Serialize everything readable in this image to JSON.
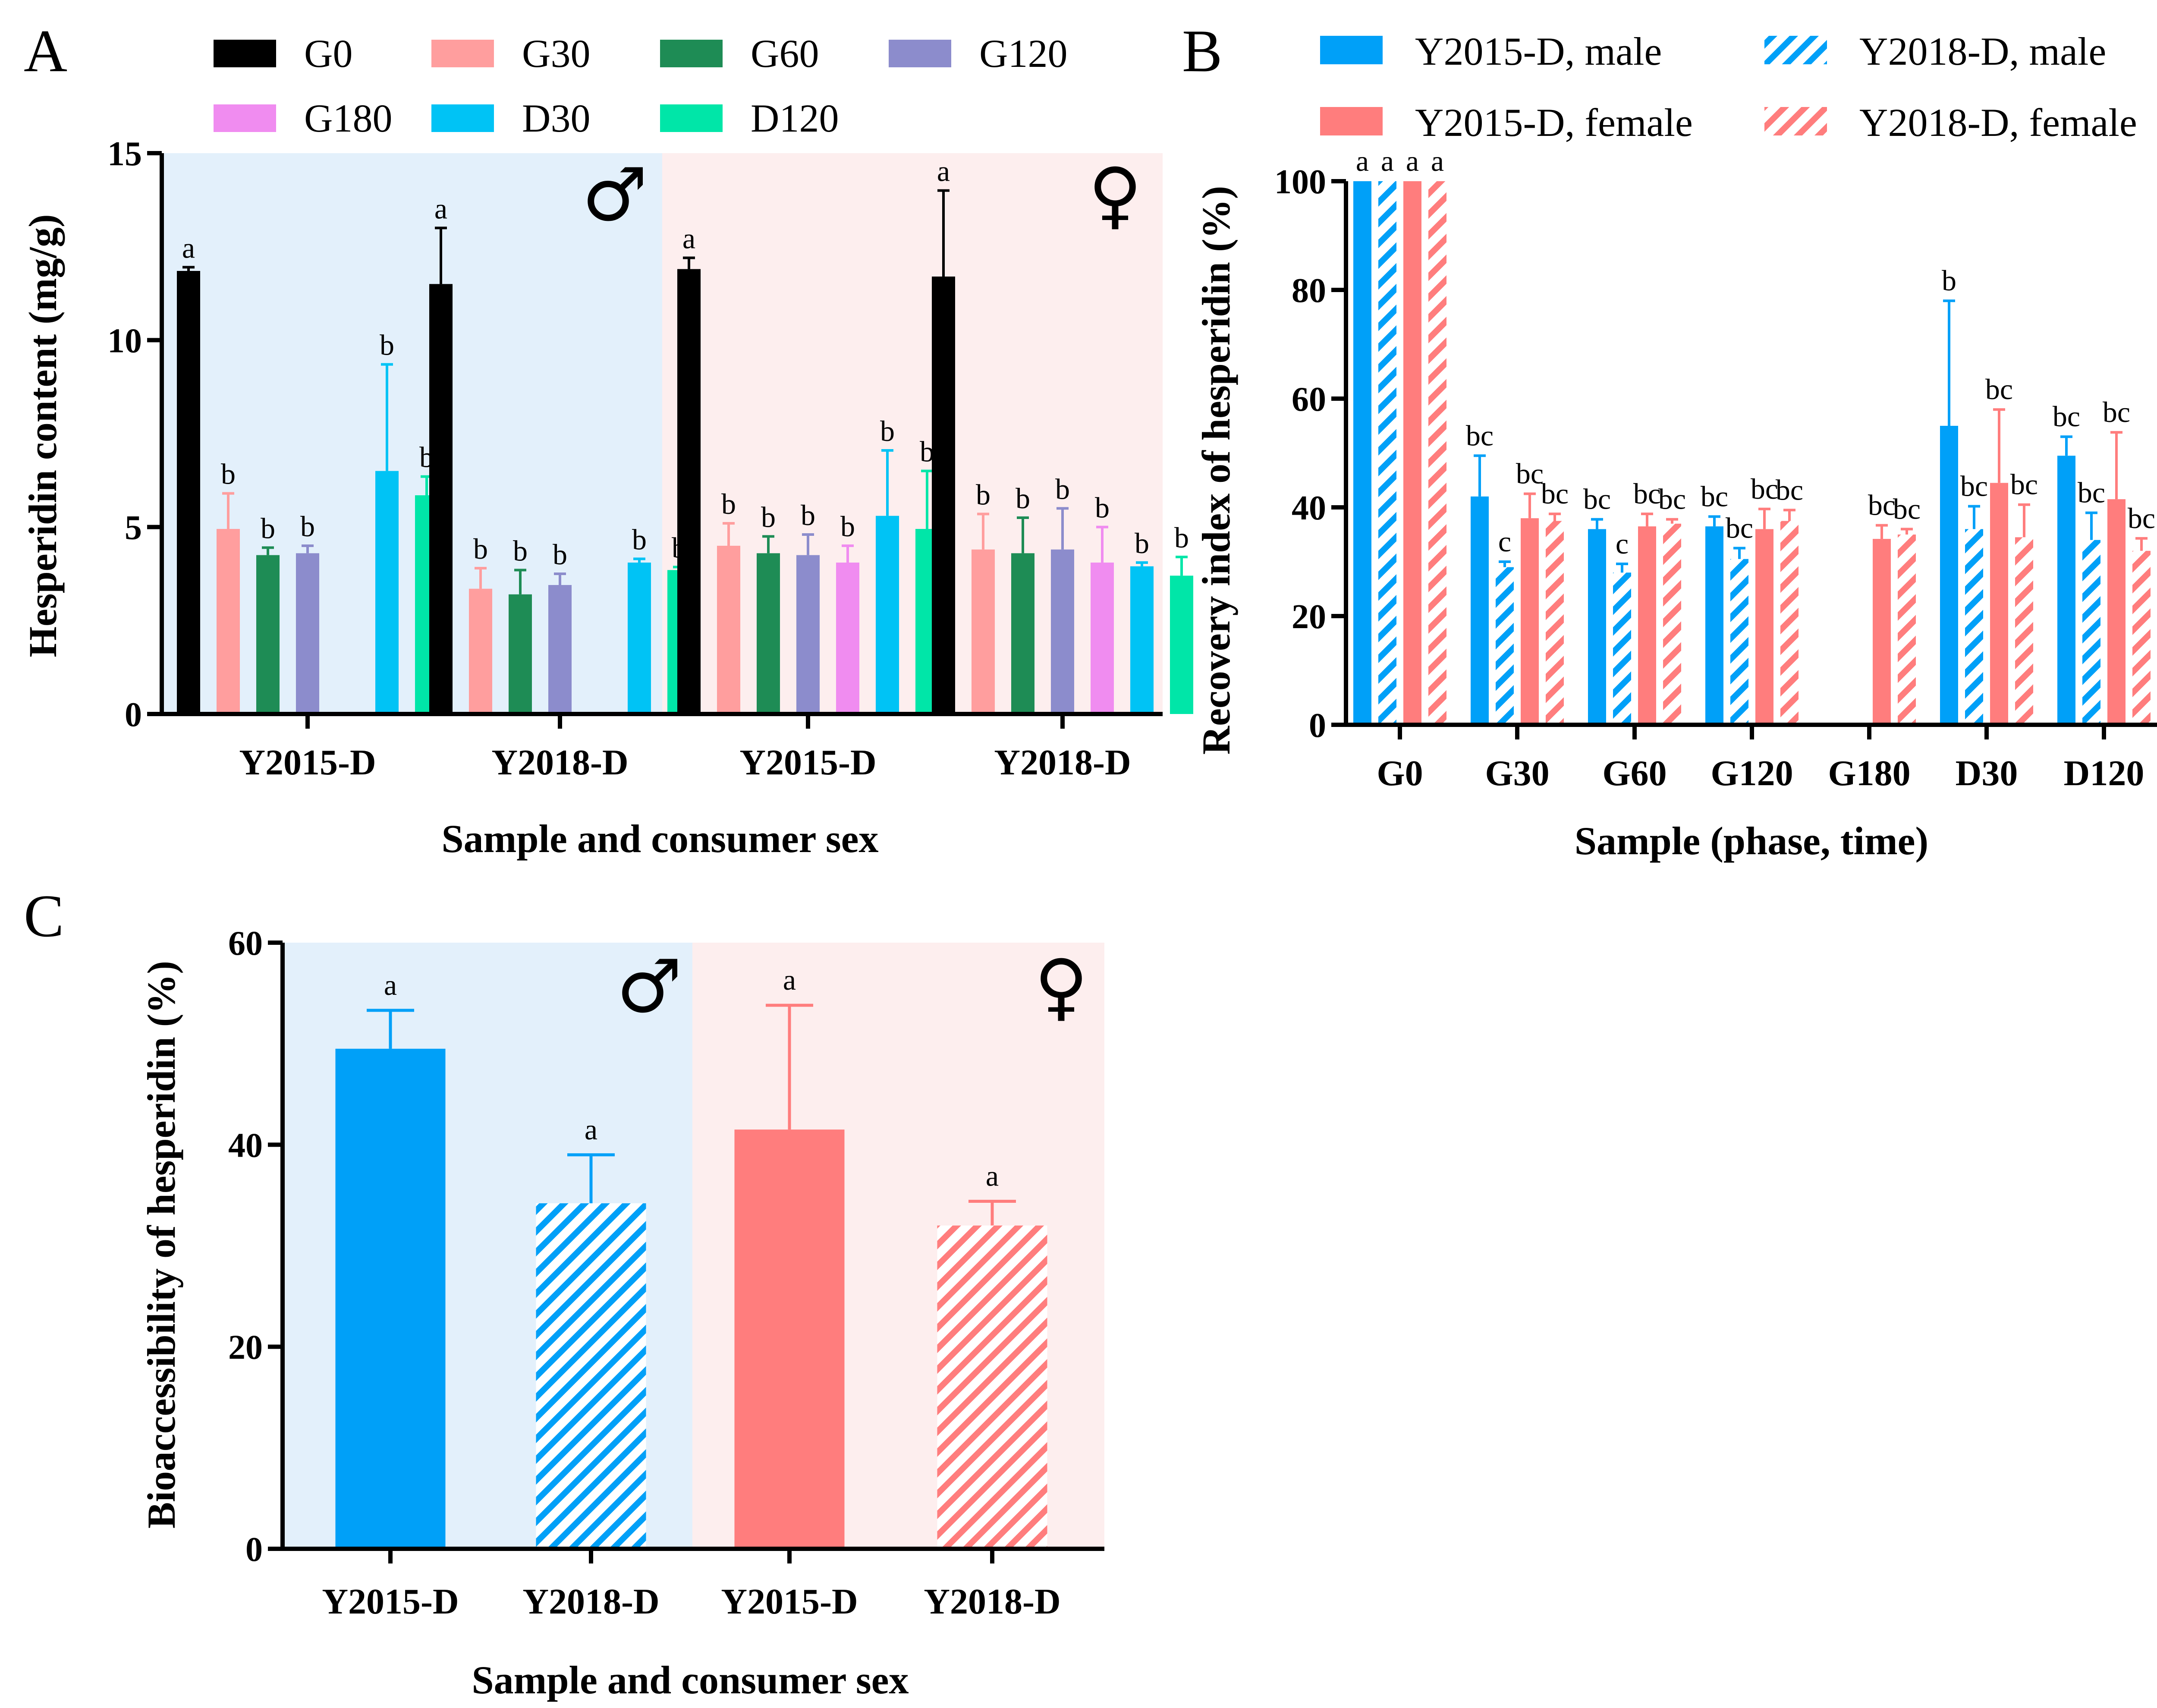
{
  "colors": {
    "G0": "#000000",
    "G30": "#ff9e9e",
    "G60": "#1e8c55",
    "G120": "#8c8ccc",
    "G180": "#f08cf0",
    "D30": "#00c3f5",
    "D120": "#00e6a8",
    "male": "#00a0f8",
    "female": "#ff7d7d",
    "male_bg": "#e3f0fb",
    "female_bg": "#fdeeee"
  },
  "chart_data": [
    {
      "panel": "A",
      "type": "bar",
      "ylabel": "Hesperidin content (mg/g)",
      "xlabel": "Sample and consumer sex",
      "ylim": [
        0,
        15
      ],
      "yticks": [
        0,
        5,
        10,
        15
      ],
      "legend_entries": [
        "G0",
        "G30",
        "G60",
        "G120",
        "G180",
        "D30",
        "D120"
      ],
      "sex_symbols": [
        "♂",
        "♀"
      ],
      "groups": [
        {
          "label": "Y2015-D",
          "sex": "male",
          "bars": [
            {
              "series": "G0",
              "value": 11.85,
              "err": 0.1,
              "sig": "a"
            },
            {
              "series": "G30",
              "value": 4.95,
              "err": 0.95,
              "sig": "b"
            },
            {
              "series": "G60",
              "value": 4.25,
              "err": 0.2,
              "sig": "b"
            },
            {
              "series": "G120",
              "value": 4.3,
              "err": 0.2,
              "sig": "b"
            },
            {
              "series": "G180",
              "value": null,
              "err": null,
              "sig": ""
            },
            {
              "series": "D30",
              "value": 6.5,
              "err": 2.85,
              "sig": "b"
            },
            {
              "series": "D120",
              "value": 5.85,
              "err": 0.5,
              "sig": "b"
            }
          ]
        },
        {
          "label": "Y2018-D",
          "sex": "male",
          "bars": [
            {
              "series": "G0",
              "value": 11.5,
              "err": 1.5,
              "sig": "a"
            },
            {
              "series": "G30",
              "value": 3.35,
              "err": 0.55,
              "sig": "b"
            },
            {
              "series": "G60",
              "value": 3.2,
              "err": 0.65,
              "sig": "b"
            },
            {
              "series": "G120",
              "value": 3.45,
              "err": 0.3,
              "sig": "b"
            },
            {
              "series": "G180",
              "value": null,
              "err": null,
              "sig": ""
            },
            {
              "series": "D30",
              "value": 4.05,
              "err": 0.1,
              "sig": "b"
            },
            {
              "series": "D120",
              "value": 3.85,
              "err": 0.08,
              "sig": "b"
            }
          ]
        },
        {
          "label": "Y2015-D",
          "sex": "female",
          "bars": [
            {
              "series": "G0",
              "value": 11.9,
              "err": 0.3,
              "sig": "a"
            },
            {
              "series": "G30",
              "value": 4.5,
              "err": 0.6,
              "sig": "b"
            },
            {
              "series": "G60",
              "value": 4.3,
              "err": 0.45,
              "sig": "b"
            },
            {
              "series": "G120",
              "value": 4.25,
              "err": 0.55,
              "sig": "b"
            },
            {
              "series": "G180",
              "value": 4.05,
              "err": 0.45,
              "sig": "b"
            },
            {
              "series": "D30",
              "value": 5.3,
              "err": 1.75,
              "sig": "b"
            },
            {
              "series": "D120",
              "value": 4.95,
              "err": 1.55,
              "sig": "b"
            }
          ]
        },
        {
          "label": "Y2018-D",
          "sex": "female",
          "bars": [
            {
              "series": "G0",
              "value": 11.7,
              "err": 2.3,
              "sig": "a"
            },
            {
              "series": "G30",
              "value": 4.4,
              "err": 0.95,
              "sig": "b"
            },
            {
              "series": "G60",
              "value": 4.3,
              "err": 0.95,
              "sig": "b"
            },
            {
              "series": "G120",
              "value": 4.4,
              "err": 1.1,
              "sig": "b"
            },
            {
              "series": "G180",
              "value": 4.05,
              "err": 0.95,
              "sig": "b"
            },
            {
              "series": "D30",
              "value": 3.95,
              "err": 0.1,
              "sig": "b"
            },
            {
              "series": "D120",
              "value": 3.7,
              "err": 0.5,
              "sig": "b"
            }
          ]
        }
      ]
    },
    {
      "panel": "B",
      "type": "bar",
      "ylabel": "Recovery index of hesperidin (%)",
      "xlabel": "Sample (phase, time)",
      "ylim": [
        0,
        100
      ],
      "yticks": [
        0,
        20,
        40,
        60,
        80,
        100
      ],
      "categories": [
        "G0",
        "G30",
        "G60",
        "G120",
        "G180",
        "D30",
        "D120"
      ],
      "series": [
        {
          "name": "Y2015-D, male",
          "color_key": "male",
          "hatched": false,
          "values": [
            100,
            42,
            36,
            36.5,
            null,
            55,
            49.5
          ],
          "errors": [
            0,
            7.5,
            1.8,
            1.8,
            null,
            23,
            3.5
          ],
          "sig": [
            "a",
            "bc",
            "bc",
            "bc",
            "",
            "b",
            "bc"
          ]
        },
        {
          "name": "Y2018-D, male",
          "color_key": "male",
          "hatched": true,
          "values": [
            100,
            29,
            28,
            30.5,
            null,
            36,
            34
          ],
          "errors": [
            0,
            1.0,
            1.6,
            2.0,
            null,
            4.2,
            5.0
          ],
          "sig": [
            "a",
            "c",
            "c",
            "bc",
            "",
            "bc",
            "bc"
          ]
        },
        {
          "name": "Y2015-D, female",
          "color_key": "female",
          "hatched": false,
          "values": [
            100,
            38,
            36.5,
            36,
            34.2,
            44.5,
            41.5
          ],
          "errors": [
            0,
            4.5,
            2.3,
            3.7,
            2.5,
            13.5,
            12.3
          ],
          "sig": [
            "a",
            "bc",
            "bc",
            "bc",
            "bc",
            "bc",
            "bc"
          ]
        },
        {
          "name": "Y2018-D, female",
          "color_key": "female",
          "hatched": true,
          "values": [
            100,
            37.5,
            37,
            37.5,
            35,
            34.5,
            32
          ],
          "errors": [
            0,
            1.3,
            0.8,
            2.0,
            1.0,
            6.0,
            2.3
          ],
          "sig": [
            "a",
            "bc",
            "bc",
            "bc",
            "bc",
            "bc",
            "bc"
          ]
        }
      ]
    },
    {
      "panel": "C",
      "type": "bar",
      "ylabel": "Bioaccessibility of hesperidin (%)",
      "xlabel": "Sample and consumer sex",
      "ylim": [
        0,
        60
      ],
      "yticks": [
        0,
        20,
        40,
        60
      ],
      "sex_symbols": [
        "♂",
        "♀"
      ],
      "bars": [
        {
          "label": "Y2015-D",
          "color_key": "male",
          "hatched": false,
          "value": 49.5,
          "err": 3.8,
          "sig": "a"
        },
        {
          "label": "Y2018-D",
          "color_key": "male",
          "hatched": true,
          "value": 34.2,
          "err": 4.8,
          "sig": "a"
        },
        {
          "label": "Y2015-D",
          "color_key": "female",
          "hatched": false,
          "value": 41.5,
          "err": 12.3,
          "sig": "a"
        },
        {
          "label": "Y2018-D",
          "color_key": "female",
          "hatched": true,
          "value": 32.0,
          "err": 2.4,
          "sig": "a"
        }
      ]
    }
  ]
}
